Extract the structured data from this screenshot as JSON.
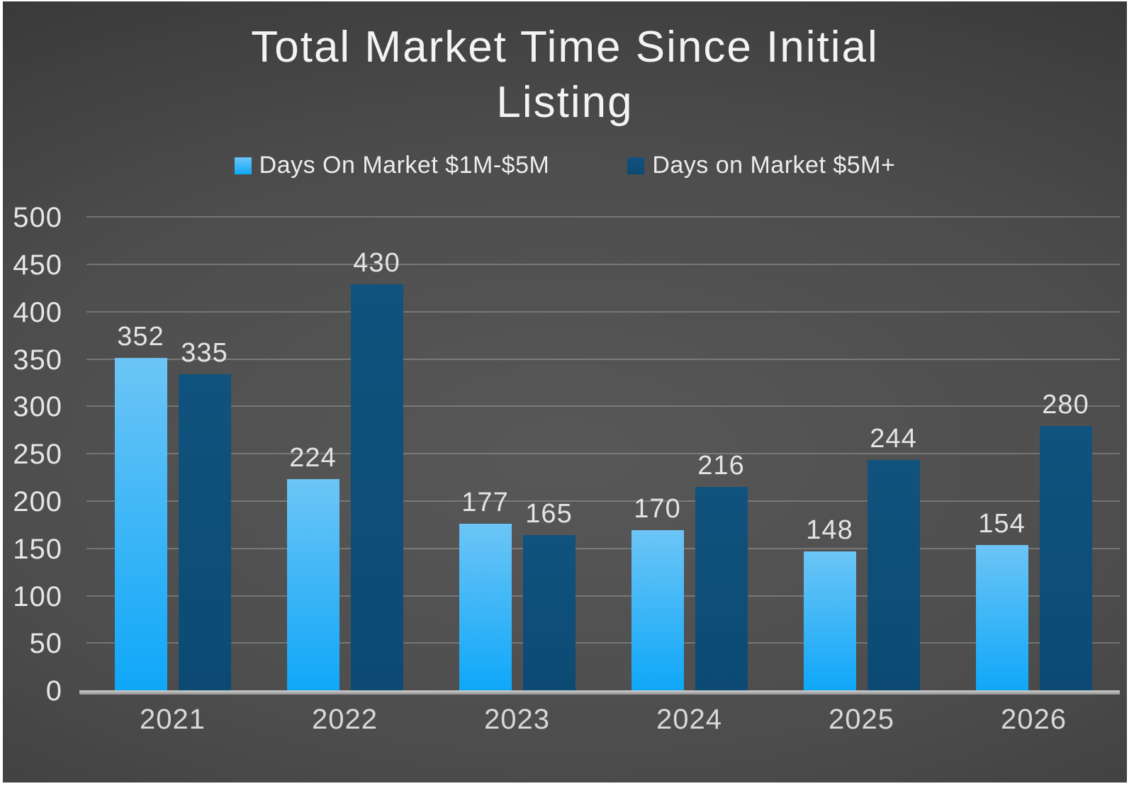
{
  "chart_data": {
    "type": "bar",
    "title": "Total Market Time Since Initial Listing",
    "title_lines": [
      "Total Market Time Since Initial",
      "Listing"
    ],
    "categories": [
      "2021",
      "2022",
      "2023",
      "2024",
      "2025",
      "2026"
    ],
    "series": [
      {
        "name": "Days On Market $1M-$5M",
        "values": [
          352,
          224,
          177,
          170,
          148,
          154
        ],
        "color_top": "#6cc5f6",
        "color_bottom": "#0fa7f8"
      },
      {
        "name": "Days on Market $5M+",
        "values": [
          335,
          430,
          165,
          216,
          244,
          280
        ],
        "color_top": "#10537e",
        "color_bottom": "#0c4a73"
      }
    ],
    "ylim": [
      0,
      500
    ],
    "yticks": [
      0,
      50,
      100,
      150,
      200,
      250,
      300,
      350,
      400,
      450,
      500
    ],
    "grid": true,
    "legend_position": "top",
    "xlabel": "",
    "ylabel": ""
  },
  "style": {
    "background_center": "#585858",
    "background_edge": "#2a2a2a",
    "gridline_color": "rgba(255,255,255,0.22)",
    "axis_line_color": "#b0b0b0",
    "text_color": "#ececec"
  }
}
